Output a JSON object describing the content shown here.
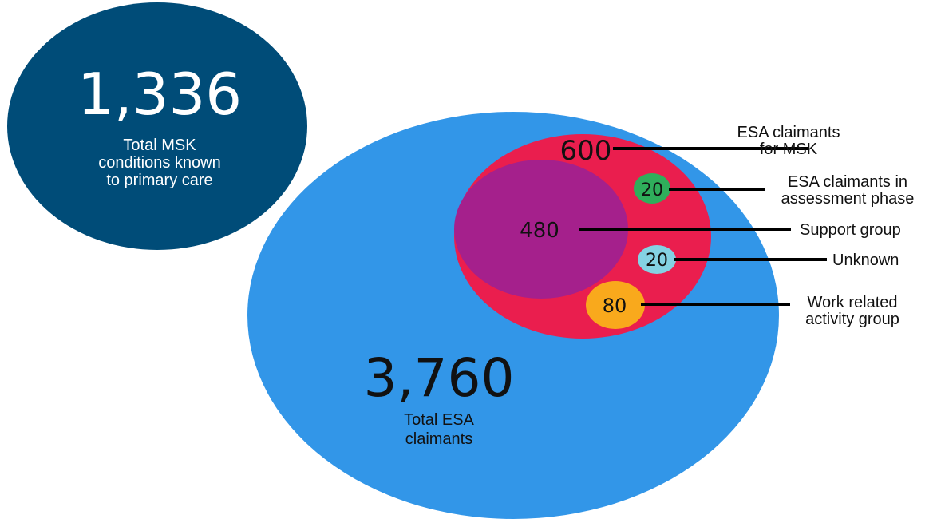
{
  "colors": {
    "msk_circle": "#004c78",
    "esa_circle": "#3296e8",
    "esa_msk_circle": "#ea1e4e",
    "support_group_circle": "#a5208c",
    "assessment_circle": "#2fae5b",
    "unknown_circle": "#84d2e3",
    "wrag_circle": "#f9a91c",
    "leader_line": "#000000"
  },
  "msk": {
    "value": "1,336",
    "label_lines": [
      "Total MSK",
      "conditions known",
      "to primary care"
    ]
  },
  "esa_total": {
    "value": "3,760",
    "label_lines": [
      "Total ESA",
      "claimants"
    ]
  },
  "esa_msk": {
    "value": "600",
    "label_lines": [
      "ESA claimants",
      "for MSK"
    ]
  },
  "assessment": {
    "value": "20",
    "label_lines": [
      "ESA claimants in",
      "assessment phase"
    ]
  },
  "support_group": {
    "value": "480",
    "label_lines": [
      "Support group"
    ]
  },
  "unknown": {
    "value": "20",
    "label_lines": [
      "Unknown"
    ]
  },
  "wrag": {
    "value": "80",
    "label_lines": [
      "Work related",
      "activity group"
    ]
  }
}
